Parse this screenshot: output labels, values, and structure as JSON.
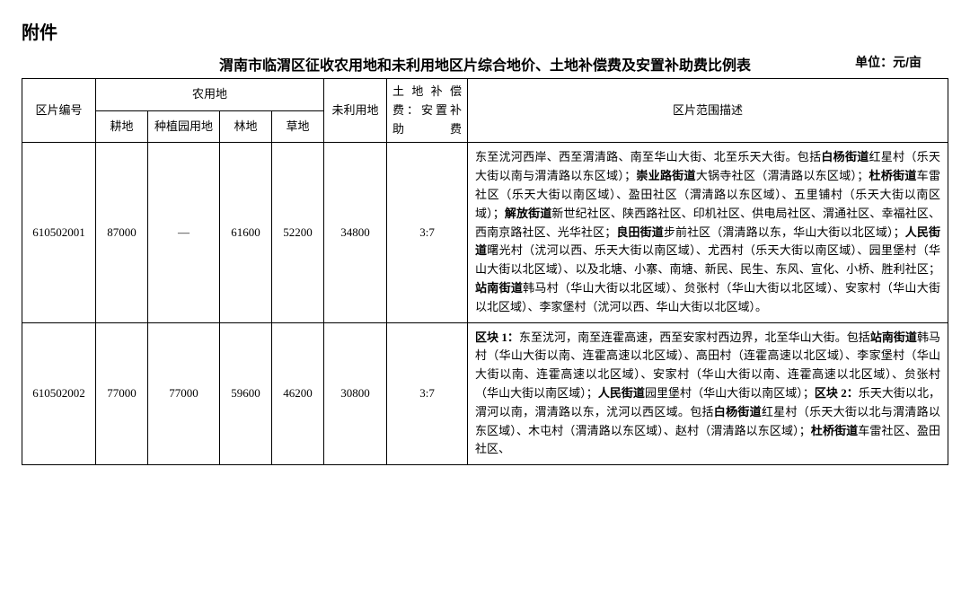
{
  "attachment_label": "附件",
  "table_title": "渭南市临渭区征收农用地和未利用地区片综合地价、土地补偿费及安置补助费比例表",
  "unit_label": "单位：元/亩",
  "headers": {
    "zone_id": "区片编号",
    "farmland": "农用地",
    "gengdi": "耕地",
    "zhongzhi": "种植园用地",
    "lindi": "林地",
    "caodi": "草地",
    "unused": "未利用地",
    "ratio": "土地补偿费：安置补助费",
    "desc": "区片范围描述"
  },
  "rows": [
    {
      "id": "610502001",
      "gengdi": "87000",
      "zhongzhi": "—",
      "lindi": "61600",
      "caodi": "52200",
      "unused": "34800",
      "ratio": "3:7",
      "desc_parts": [
        {
          "t": "东至沋河西岸、西至渭清路、南至华山大街、北至乐天大街。包括"
        },
        {
          "t": "白杨街道",
          "b": true
        },
        {
          "t": "红星村（乐天大街以南与渭清路以东区域）；"
        },
        {
          "t": "崇业路街道",
          "b": true
        },
        {
          "t": "大锅寺社区（渭清路以东区域）；"
        },
        {
          "t": "杜桥街道",
          "b": true
        },
        {
          "t": "车雷社区（乐天大街以南区域）、盈田社区（渭清路以东区域）、五里铺村（乐天大街以南区域）；"
        },
        {
          "t": "解放街道",
          "b": true
        },
        {
          "t": "新世纪社区、陕西路社区、印机社区、供电局社区、渭通社区、幸福社区、西南京路社区、光华社区；"
        },
        {
          "t": "良田街道",
          "b": true
        },
        {
          "t": "步前社区（渭清路以东，华山大街以北区域）；"
        },
        {
          "t": "人民街道",
          "b": true
        },
        {
          "t": "曙光村（沋河以西、乐天大街以南区域）、尤西村（乐天大街以南区域）、园里堡村（华山大街以北区域）、以及北塘、小寨、南塘、新民、民生、东风、宣化、小桥、胜利社区；"
        },
        {
          "t": "站南街道",
          "b": true
        },
        {
          "t": "韩马村（华山大街以北区域）、贠张村（华山大街以北区域）、安家村（华山大街以北区域）、李家堡村（沋河以西、华山大街以北区域）。"
        }
      ]
    },
    {
      "id": "610502002",
      "gengdi": "77000",
      "zhongzhi": "77000",
      "lindi": "59600",
      "caodi": "46200",
      "unused": "30800",
      "ratio": "3:7",
      "desc_parts": [
        {
          "t": "区块 1：",
          "b": true
        },
        {
          "t": "东至沋河，南至连霍高速，西至安家村西边界，北至华山大街。包括"
        },
        {
          "t": "站南街道",
          "b": true
        },
        {
          "t": "韩马村（华山大街以南、连霍高速以北区域）、高田村（连霍高速以北区域）、李家堡村（华山大街以南、连霍高速以北区域）、安家村（华山大街以南、连霍高速以北区域）、贠张村（华山大街以南区域）；"
        },
        {
          "t": "人民街道",
          "b": true
        },
        {
          "t": "园里堡村（华山大街以南区域）；"
        },
        {
          "t": "区块 2：",
          "b": true
        },
        {
          "t": "乐天大街以北，渭河以南，渭清路以东，沋河以西区域。包括"
        },
        {
          "t": "白杨街道",
          "b": true
        },
        {
          "t": "红星村（乐天大街以北与渭清路以东区域）、木屯村（渭清路以东区域）、赵村（渭清路以东区域）；"
        },
        {
          "t": "杜桥街道",
          "b": true
        },
        {
          "t": "车雷社区、盈田社区、"
        }
      ]
    }
  ]
}
